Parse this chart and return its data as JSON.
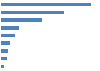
{
  "values": [
    9200,
    6400,
    4200,
    1800,
    1400,
    900,
    700,
    600,
    300
  ],
  "bar_color": "#4f81bd",
  "background_color": "#ffffff",
  "xlim": [
    0,
    10000
  ]
}
